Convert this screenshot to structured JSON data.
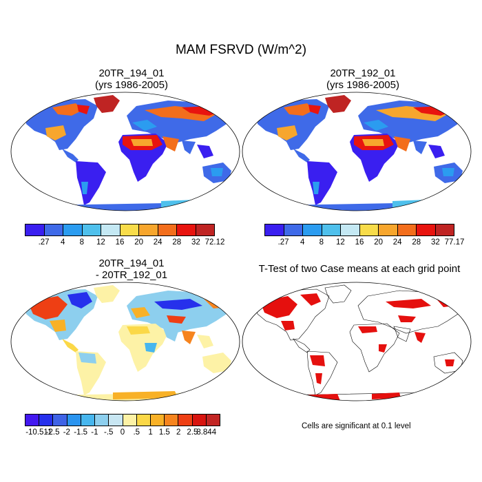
{
  "figure": {
    "title": "MAM FSRVD (W/m^2)"
  },
  "panels": [
    {
      "id": "case1",
      "title_line1": "20TR_194_01",
      "title_line2": "(yrs 1986-2005)"
    },
    {
      "id": "case2",
      "title_line1": "20TR_192_01",
      "title_line2": "(yrs 1986-2005)"
    },
    {
      "id": "diff",
      "title_line1": "20TR_194_01",
      "title_line2": "- 20TR_192_01"
    },
    {
      "id": "ttest",
      "title_line1": "T-Test of two Case means at each grid point",
      "title_line2": ""
    }
  ],
  "colorbars": {
    "case1": {
      "labels": [
        ".27",
        "4",
        "8",
        "12",
        "16",
        "20",
        "24",
        "28",
        "32",
        "72.12"
      ],
      "colors": [
        "#3a1ff0",
        "#3f6ae8",
        "#2b9cf0",
        "#4fc0ec",
        "#c4e8f3",
        "#f8dc4a",
        "#f7a62d",
        "#f36e1c",
        "#e8140f",
        "#bf2423"
      ]
    },
    "case2": {
      "labels": [
        ".27",
        "4",
        "8",
        "12",
        "16",
        "20",
        "24",
        "28",
        "32",
        "77.17"
      ],
      "colors": [
        "#3a1ff0",
        "#3f6ae8",
        "#2b9cf0",
        "#4fc0ec",
        "#c4e8f3",
        "#f8dc4a",
        "#f7a62d",
        "#f36e1c",
        "#e8140f",
        "#bf2423"
      ]
    },
    "diff": {
      "labels": [
        "-10.511",
        "-2.5",
        "-2",
        "-1.5",
        "-1",
        "-.5",
        "0",
        ".5",
        "1",
        "1.5",
        "2",
        "2.5",
        "8.844"
      ],
      "colors": [
        "#4318f0",
        "#2630ec",
        "#3f63e6",
        "#2a94ef",
        "#47b6ee",
        "#8dcfee",
        "#c8e6f2",
        "#fdf2a6",
        "#fbd847",
        "#f8b127",
        "#f6841e",
        "#ee3f14",
        "#d8140f",
        "#c22523"
      ]
    }
  },
  "maps": {
    "colors": {
      "land_fill": "#3f6ae8",
      "ocean": "#ffffff",
      "outline": "#000000",
      "significant": "#e5100e",
      "diff_land": "#fbe48a"
    }
  },
  "significance_note": "Cells are significant at 0.1 level"
}
